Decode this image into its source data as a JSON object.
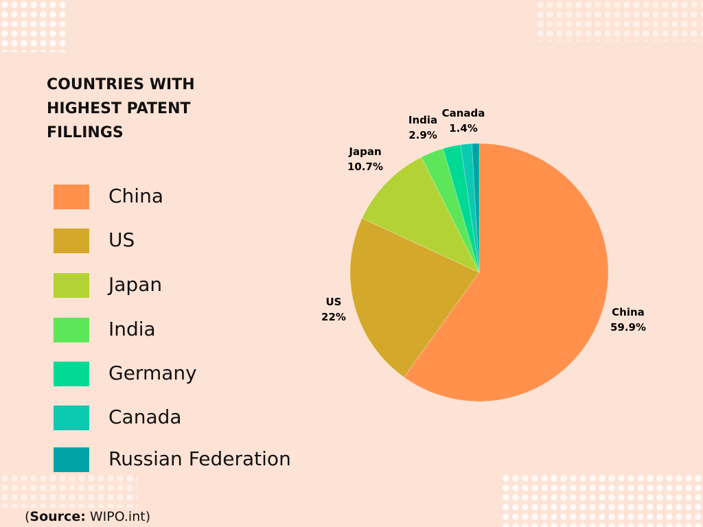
{
  "chart_data": {
    "type": "pie",
    "title": "COUNTRIES WITH HIGHEST PATENT FILLINGS",
    "slices": [
      {
        "label": "China",
        "value": 59.9,
        "data_label": "59.9%",
        "color": "#ff914d"
      },
      {
        "label": "US",
        "value": 22,
        "data_label": "22%",
        "color": "#d4a92b"
      },
      {
        "label": "Japan",
        "value": 10.7,
        "data_label": "10.7%",
        "color": "#b3d236"
      },
      {
        "label": "India",
        "value": 2.9,
        "data_label": "2.9%",
        "color": "#5ee65a"
      },
      {
        "label": "Germany",
        "value": 2.2,
        "data_label": "",
        "color": "#00d994"
      },
      {
        "label": "Canada",
        "value": 1.4,
        "data_label": "1.4%",
        "color": "#0cc9b1"
      },
      {
        "label": "Russian Federation",
        "value": 0.9,
        "data_label": "",
        "color": "#00a4a8"
      }
    ],
    "legend_position": "left"
  },
  "source": {
    "prefix": "(",
    "bold": "Source:",
    "text": " WIPO.int)"
  }
}
